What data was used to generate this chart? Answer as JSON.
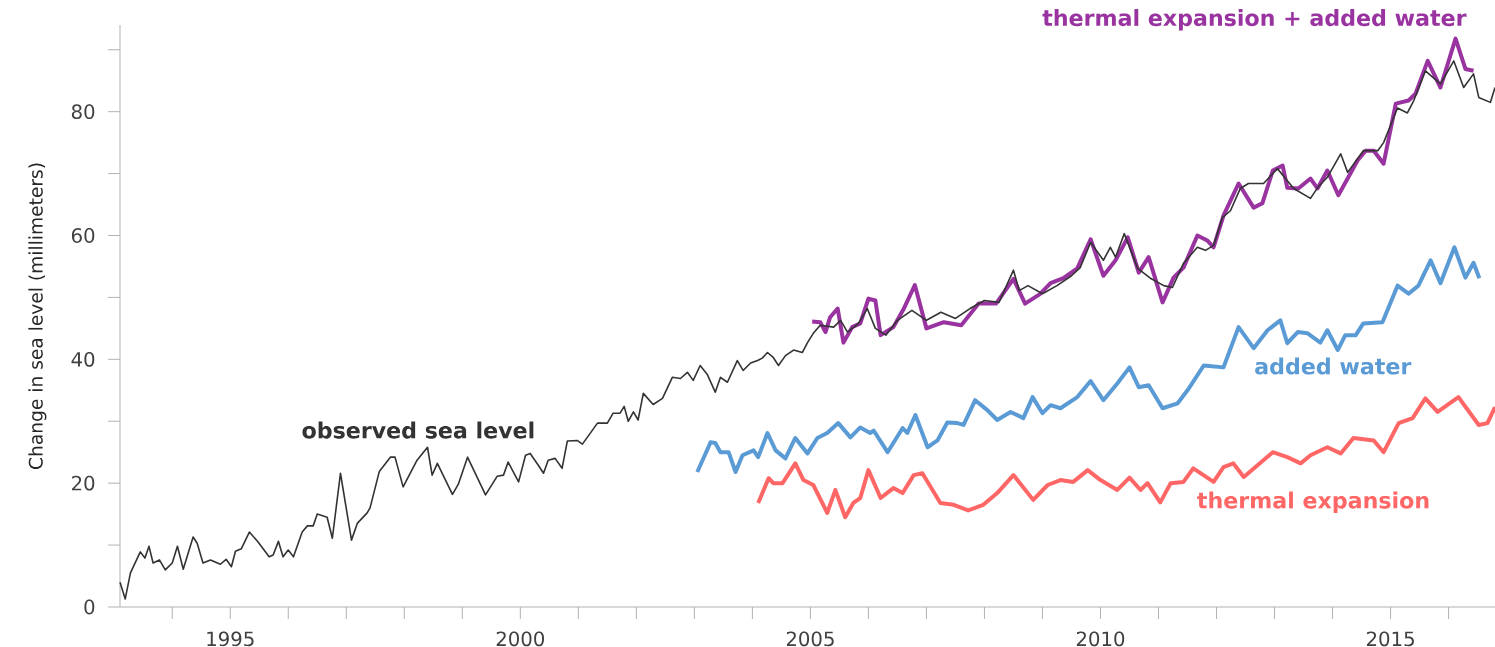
{
  "chart_data": {
    "type": "line",
    "ylabel": "Change in sea level (millimeters)",
    "xlim": [
      1993.1,
      2016.8
    ],
    "ylim": [
      0,
      94
    ],
    "xticks": [
      {
        "value": 1994,
        "label": null
      },
      1995,
      {
        "value": 1996,
        "label": null
      },
      {
        "value": 1997,
        "label": null
      },
      {
        "value": 1998,
        "label": null
      },
      {
        "value": 1999,
        "label": null
      },
      2000,
      {
        "value": 2001,
        "label": null
      },
      {
        "value": 2002,
        "label": null
      },
      {
        "value": 2003,
        "label": null
      },
      {
        "value": 2004,
        "label": null
      },
      2005,
      {
        "value": 2006,
        "label": null
      },
      {
        "value": 2007,
        "label": null
      },
      {
        "value": 2008,
        "label": null
      },
      {
        "value": 2009,
        "label": null
      },
      2010,
      {
        "value": 2011,
        "label": null
      },
      {
        "value": 2012,
        "label": null
      },
      {
        "value": 2013,
        "label": null
      },
      {
        "value": 2014,
        "label": null
      },
      2015,
      {
        "value": 2016,
        "label": null
      }
    ],
    "yticks": [
      0,
      {
        "value": 10,
        "label": null
      },
      20,
      {
        "value": 30,
        "label": null
      },
      40,
      {
        "value": 50,
        "label": null
      },
      60,
      {
        "value": 70,
        "label": null
      },
      80,
      {
        "value": 90,
        "label": null
      }
    ],
    "grid": false,
    "legend": false,
    "marker": "none",
    "line_style": "solid",
    "series": [
      {
        "name": "observed sea level",
        "color": "#333333",
        "x": [
          1993.1,
          1993.19,
          1993.28,
          1993.45,
          1993.53,
          1993.6,
          1993.67,
          1993.78,
          1993.88,
          1994.0,
          1994.09,
          1994.19,
          1994.36,
          1994.43,
          1994.53,
          1994.66,
          1994.83,
          1994.93,
          1995.02,
          1995.09,
          1995.19,
          1995.33,
          1995.48,
          1995.67,
          1995.74,
          1995.83,
          1995.91,
          1996.0,
          1996.09,
          1996.24,
          1996.33,
          1996.43,
          1996.5,
          1996.67,
          1996.76,
          1996.9,
          1997.09,
          1997.19,
          1997.36,
          1997.41,
          1997.57,
          1997.76,
          1997.84,
          1997.98,
          1998.22,
          1998.4,
          1998.48,
          1998.57,
          1998.83,
          1998.93,
          1999.09,
          1999.4,
          1999.6,
          1999.71,
          1999.79,
          1999.97,
          2000.09,
          2000.17,
          2000.31,
          2000.4,
          2000.48,
          2000.6,
          2000.72,
          2000.81,
          2000.98,
          2001.07,
          2001.33,
          2001.5,
          2001.6,
          2001.72,
          2001.79,
          2001.86,
          2001.95,
          2002.03,
          2002.12,
          2002.29,
          2002.45,
          2002.62,
          2002.76,
          2002.88,
          2002.98,
          2003.1,
          2003.22,
          2003.36,
          2003.45,
          2003.57,
          2003.74,
          2003.84,
          2003.97,
          2004.09,
          2004.17,
          2004.26,
          2004.36,
          2004.45,
          2004.57,
          2004.71,
          2004.86,
          2004.95,
          2005.05,
          2005.17,
          2005.4,
          2005.52,
          2005.64,
          2005.83,
          2005.98,
          2006.12,
          2006.3,
          2006.5,
          2006.75,
          2007.0,
          2007.25,
          2007.5,
          2007.75,
          2008.0,
          2008.25,
          2008.5,
          2008.6,
          2008.75,
          2009.0,
          2009.25,
          2009.5,
          2009.65,
          2009.83,
          2010.05,
          2010.17,
          2010.26,
          2010.41,
          2010.64,
          2010.86,
          2011.09,
          2011.24,
          2011.43,
          2011.67,
          2011.81,
          2011.95,
          2012.1,
          2012.24,
          2012.41,
          2012.55,
          2012.81,
          2013.05,
          2013.33,
          2013.62,
          2013.74,
          2013.91,
          2014.14,
          2014.26,
          2014.53,
          2014.78,
          2014.88,
          2015.12,
          2015.29,
          2015.4,
          2015.6,
          2015.86,
          2016.09,
          2016.26,
          2016.43,
          2016.52,
          2016.72,
          2016.8
        ],
        "values": [
          4.0,
          1.3,
          5.5,
          8.9,
          7.9,
          9.8,
          7.1,
          7.6,
          6.0,
          7.1,
          9.8,
          6.1,
          11.3,
          10.3,
          7.1,
          7.6,
          6.9,
          7.7,
          6.5,
          9.0,
          9.4,
          12.1,
          10.5,
          8.1,
          8.4,
          10.6,
          8.1,
          9.2,
          8.1,
          12.1,
          13.1,
          13.1,
          15.0,
          14.5,
          11.1,
          21.6,
          10.8,
          13.5,
          15.2,
          16.0,
          21.9,
          24.2,
          24.2,
          19.4,
          23.7,
          25.8,
          21.3,
          23.2,
          18.2,
          19.8,
          24.2,
          18.1,
          21.1,
          21.3,
          23.4,
          20.2,
          24.5,
          24.8,
          22.9,
          21.6,
          23.7,
          24.0,
          22.4,
          26.8,
          26.9,
          26.3,
          29.7,
          29.7,
          31.3,
          31.3,
          32.4,
          30.0,
          31.5,
          30.2,
          34.5,
          32.7,
          33.7,
          37.1,
          36.9,
          37.9,
          36.6,
          39.0,
          37.6,
          34.7,
          37.1,
          36.3,
          39.8,
          38.2,
          39.4,
          39.8,
          40.2,
          41.1,
          40.3,
          39.0,
          40.6,
          41.5,
          41.1,
          42.7,
          44.2,
          45.5,
          45.2,
          46.3,
          44.4,
          45.8,
          48.2,
          45.0,
          43.9,
          46.3,
          47.9,
          46.3,
          47.6,
          46.6,
          48.2,
          49.5,
          49.2,
          54.4,
          51.1,
          51.9,
          50.6,
          51.9,
          53.5,
          54.8,
          58.9,
          56.0,
          58.1,
          56.5,
          60.3,
          54.7,
          53.1,
          51.9,
          51.6,
          55.5,
          58.1,
          57.6,
          58.4,
          62.9,
          64.0,
          67.6,
          68.4,
          68.4,
          70.8,
          67.6,
          66.0,
          67.7,
          69.4,
          73.2,
          70.2,
          73.7,
          73.7,
          75.0,
          80.6,
          79.8,
          81.8,
          86.6,
          84.5,
          88.2,
          83.9,
          86.1,
          82.3,
          81.5,
          83.9
        ]
      },
      {
        "name": "added water",
        "color": "#5b9bd5",
        "x": [
          2003.05,
          2003.28,
          2003.36,
          2003.45,
          2003.59,
          2003.71,
          2003.83,
          2004.02,
          2004.1,
          2004.26,
          2004.4,
          2004.57,
          2004.74,
          2004.95,
          2005.12,
          2005.29,
          2005.48,
          2005.69,
          2005.86,
          2006.03,
          2006.09,
          2006.33,
          2006.59,
          2006.67,
          2006.81,
          2007.02,
          2007.19,
          2007.36,
          2007.53,
          2007.64,
          2007.84,
          2008.05,
          2008.22,
          2008.45,
          2008.67,
          2008.83,
          2009.0,
          2009.14,
          2009.31,
          2009.6,
          2009.83,
          2010.05,
          2010.29,
          2010.5,
          2010.66,
          2010.83,
          2011.07,
          2011.33,
          2011.5,
          2011.78,
          2012.12,
          2012.38,
          2012.64,
          2012.88,
          2013.1,
          2013.22,
          2013.4,
          2013.57,
          2013.79,
          2013.91,
          2014.09,
          2014.22,
          2014.4,
          2014.53,
          2014.86,
          2015.12,
          2015.31,
          2015.48,
          2015.69,
          2015.86,
          2016.1,
          2016.29,
          2016.43,
          2016.53
        ],
        "values": [
          21.8,
          26.6,
          26.5,
          25.0,
          25.0,
          21.8,
          24.5,
          25.3,
          24.2,
          28.1,
          25.3,
          24.0,
          27.3,
          24.8,
          27.3,
          28.1,
          29.7,
          27.4,
          29.0,
          28.1,
          28.5,
          25.0,
          28.9,
          28.1,
          31.0,
          25.8,
          26.9,
          29.8,
          29.7,
          29.4,
          33.4,
          31.8,
          30.2,
          31.5,
          30.5,
          33.9,
          31.3,
          32.6,
          32.1,
          33.9,
          36.5,
          33.4,
          36.1,
          38.7,
          35.5,
          35.8,
          32.1,
          32.9,
          35.0,
          39.0,
          38.7,
          45.2,
          41.8,
          44.7,
          46.3,
          42.6,
          44.4,
          44.2,
          42.7,
          44.7,
          41.5,
          43.9,
          43.9,
          45.8,
          46.0,
          51.9,
          50.6,
          51.9,
          56.0,
          52.3,
          58.1,
          53.2,
          55.6,
          53.1
        ]
      },
      {
        "name": "thermal expansion",
        "color": "#ff6666",
        "x": [
          2004.1,
          2004.28,
          2004.36,
          2004.52,
          2004.74,
          2004.88,
          2005.05,
          2005.29,
          2005.43,
          2005.6,
          2005.74,
          2005.86,
          2006.0,
          2006.21,
          2006.43,
          2006.59,
          2006.78,
          2006.93,
          2007.24,
          2007.47,
          2007.72,
          2007.98,
          2008.22,
          2008.5,
          2008.84,
          2009.09,
          2009.31,
          2009.53,
          2009.78,
          2010.0,
          2010.29,
          2010.5,
          2010.69,
          2010.81,
          2011.03,
          2011.21,
          2011.43,
          2011.6,
          2011.95,
          2012.12,
          2012.29,
          2012.47,
          2012.97,
          2013.22,
          2013.45,
          2013.62,
          2013.91,
          2014.14,
          2014.36,
          2014.71,
          2014.88,
          2015.14,
          2015.38,
          2015.6,
          2015.81,
          2016.17,
          2016.52,
          2016.67,
          2016.8
        ],
        "values": [
          16.8,
          20.8,
          20.0,
          20.0,
          23.2,
          20.5,
          19.7,
          15.2,
          18.9,
          14.5,
          16.8,
          17.6,
          22.1,
          17.6,
          19.2,
          18.4,
          21.3,
          21.6,
          16.8,
          16.5,
          15.6,
          16.5,
          18.4,
          21.3,
          17.3,
          19.7,
          20.5,
          20.2,
          22.1,
          20.5,
          18.9,
          20.9,
          18.9,
          20.0,
          16.9,
          20.0,
          20.2,
          22.4,
          20.2,
          22.6,
          23.2,
          21.0,
          25.0,
          24.2,
          23.2,
          24.5,
          25.8,
          24.8,
          27.3,
          26.9,
          25.0,
          29.7,
          30.5,
          33.7,
          31.5,
          33.9,
          29.4,
          29.7,
          32.3
        ]
      },
      {
        "name": "thermal expansion + added water",
        "color": "#9933a0",
        "x": [
          2005.03,
          2005.17,
          2005.26,
          2005.34,
          2005.47,
          2005.57,
          2005.72,
          2005.86,
          2006.0,
          2006.12,
          2006.21,
          2006.43,
          2006.6,
          2006.8,
          2007.0,
          2007.3,
          2007.6,
          2007.9,
          2008.2,
          2008.5,
          2008.7,
          2008.95,
          2009.14,
          2009.36,
          2009.6,
          2009.83,
          2010.05,
          2010.26,
          2010.47,
          2010.66,
          2010.83,
          2011.07,
          2011.26,
          2011.43,
          2011.67,
          2011.84,
          2011.95,
          2012.12,
          2012.38,
          2012.64,
          2012.79,
          2012.97,
          2013.14,
          2013.22,
          2013.41,
          2013.62,
          2013.74,
          2013.91,
          2014.1,
          2014.26,
          2014.43,
          2014.57,
          2014.71,
          2014.88,
          2015.09,
          2015.31,
          2015.43,
          2015.64,
          2015.86,
          2016.12,
          2016.29,
          2016.43
        ],
        "values": [
          46.1,
          46.0,
          44.4,
          46.8,
          48.2,
          42.7,
          45.2,
          45.8,
          49.8,
          49.5,
          43.9,
          45.2,
          48.0,
          52.0,
          45.0,
          46.0,
          45.5,
          49.0,
          49.0,
          53.0,
          49.0,
          50.5,
          52.3,
          53.1,
          54.7,
          59.4,
          53.5,
          56.0,
          59.7,
          54.0,
          56.5,
          49.2,
          53.2,
          54.8,
          60.0,
          59.2,
          58.1,
          63.2,
          68.4,
          64.5,
          65.2,
          70.5,
          71.3,
          67.7,
          67.6,
          69.2,
          67.6,
          70.5,
          66.5,
          69.2,
          72.1,
          73.7,
          73.7,
          71.6,
          81.3,
          81.8,
          82.9,
          88.2,
          83.9,
          91.8,
          86.9,
          86.6
        ]
      }
    ]
  }
}
